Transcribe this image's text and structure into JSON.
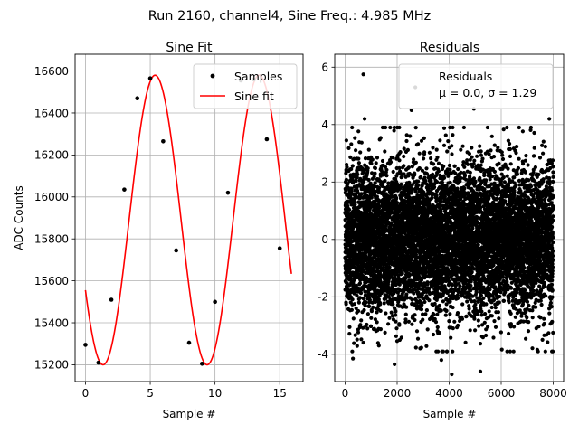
{
  "figure": {
    "suptitle": "Run 2160, channel4, Sine Freq.: 4.985 MHz"
  },
  "chart_data": [
    {
      "type": "scatter",
      "title": "Sine Fit",
      "xlabel": "Sample #",
      "ylabel": "ADC Counts",
      "xlim": [
        -0.8,
        16.8
      ],
      "ylim": [
        15120,
        16680
      ],
      "xticks": [
        0,
        5,
        10,
        15
      ],
      "yticks": [
        15200,
        15400,
        15600,
        15800,
        16000,
        16200,
        16400,
        16600
      ],
      "grid": true,
      "legend_position": "top-right",
      "series": [
        {
          "name": "Samples",
          "kind": "markers",
          "color": "#000000",
          "x": [
            0,
            1,
            2,
            3,
            4,
            5,
            6,
            7,
            8,
            9,
            10,
            11,
            12,
            13,
            14,
            15
          ],
          "y": [
            15295,
            15210,
            15510,
            16035,
            16470,
            16565,
            16265,
            15745,
            15305,
            15205,
            15500,
            16020,
            16555,
            16560,
            16275,
            15755
          ]
        },
        {
          "name": "Sine fit",
          "kind": "line",
          "color": "#ff0000",
          "function": "sine",
          "offset": 15890,
          "amplitude": 690,
          "period": 8.03,
          "phase_deg": 209,
          "x_range": [
            0,
            15.9
          ]
        }
      ]
    },
    {
      "type": "scatter",
      "title": "Residuals",
      "xlabel": "Sample #",
      "ylabel": "",
      "xlim": [
        -400,
        8400
      ],
      "ylim": [
        -4.95,
        6.45
      ],
      "xticks": [
        0,
        2000,
        4000,
        6000,
        8000
      ],
      "yticks": [
        -4,
        -2,
        0,
        2,
        4,
        6
      ],
      "grid": true,
      "legend_position": "top-right",
      "series": [
        {
          "name": "Residuals",
          "kind": "markers",
          "color": "#000000",
          "n_points": 8000,
          "x_range": [
            0,
            7999
          ],
          "mean": 0.0,
          "std": 1.29
        }
      ],
      "legend_lines": [
        "Residuals",
        "μ = 0.0, σ = 1.29"
      ],
      "outliers": [
        {
          "x": 700,
          "y": 5.75
        },
        {
          "x": 2700,
          "y": 5.3
        },
        {
          "x": 4900,
          "y": 5.6
        },
        {
          "x": 2550,
          "y": 4.5
        },
        {
          "x": 4100,
          "y": -4.7
        },
        {
          "x": 5200,
          "y": -4.6
        },
        {
          "x": 1900,
          "y": -4.35
        },
        {
          "x": 750,
          "y": 4.2
        },
        {
          "x": 7850,
          "y": 4.2
        },
        {
          "x": 3700,
          "y": -4.2
        },
        {
          "x": 300,
          "y": -4.15
        },
        {
          "x": 4950,
          "y": 4.55
        }
      ]
    }
  ]
}
